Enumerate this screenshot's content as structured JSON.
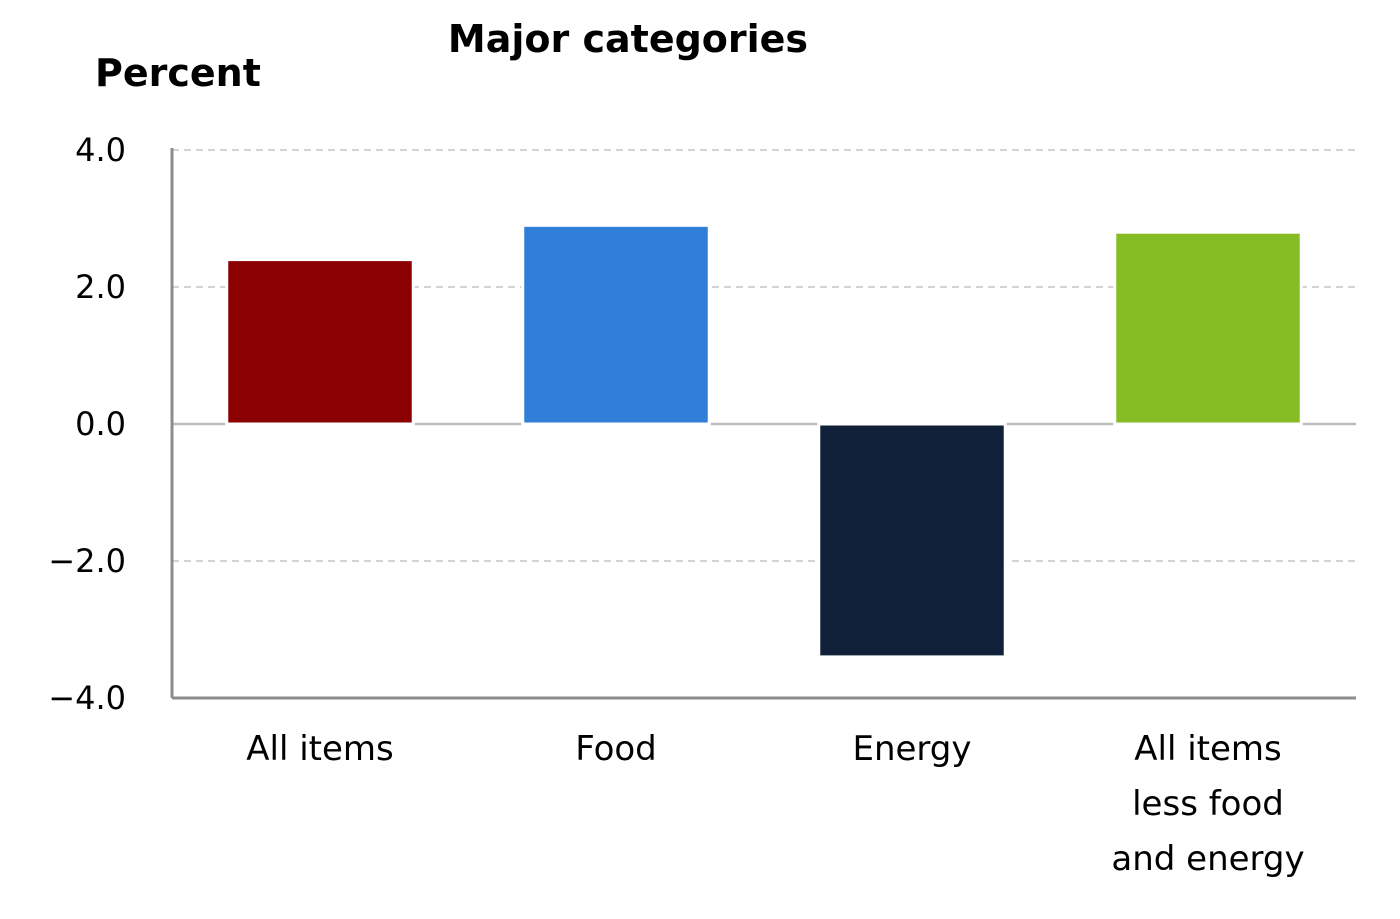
{
  "chart_data": {
    "type": "bar",
    "title": "Major categories",
    "ylabel": "Percent",
    "xlabel": "",
    "categories": [
      "All items",
      "Food",
      "Energy",
      "All items less food and energy"
    ],
    "category_lines": [
      [
        "All items"
      ],
      [
        "Food"
      ],
      [
        "Energy"
      ],
      [
        "All items",
        "less food",
        "and energy"
      ]
    ],
    "values": [
      2.4,
      2.9,
      -3.4,
      2.8
    ],
    "colors": [
      "#8b0000",
      "#2f7fd8",
      "#112039",
      "#86bc24"
    ],
    "ylim": [
      -4.0,
      4.0
    ],
    "yticks": [
      4.0,
      2.0,
      0.0,
      -2.0,
      -4.0
    ],
    "ytick_labels": [
      "4.0",
      "2.0",
      "0.0",
      "−2.0",
      "−4.0"
    ],
    "grid": true,
    "legend": "none"
  }
}
